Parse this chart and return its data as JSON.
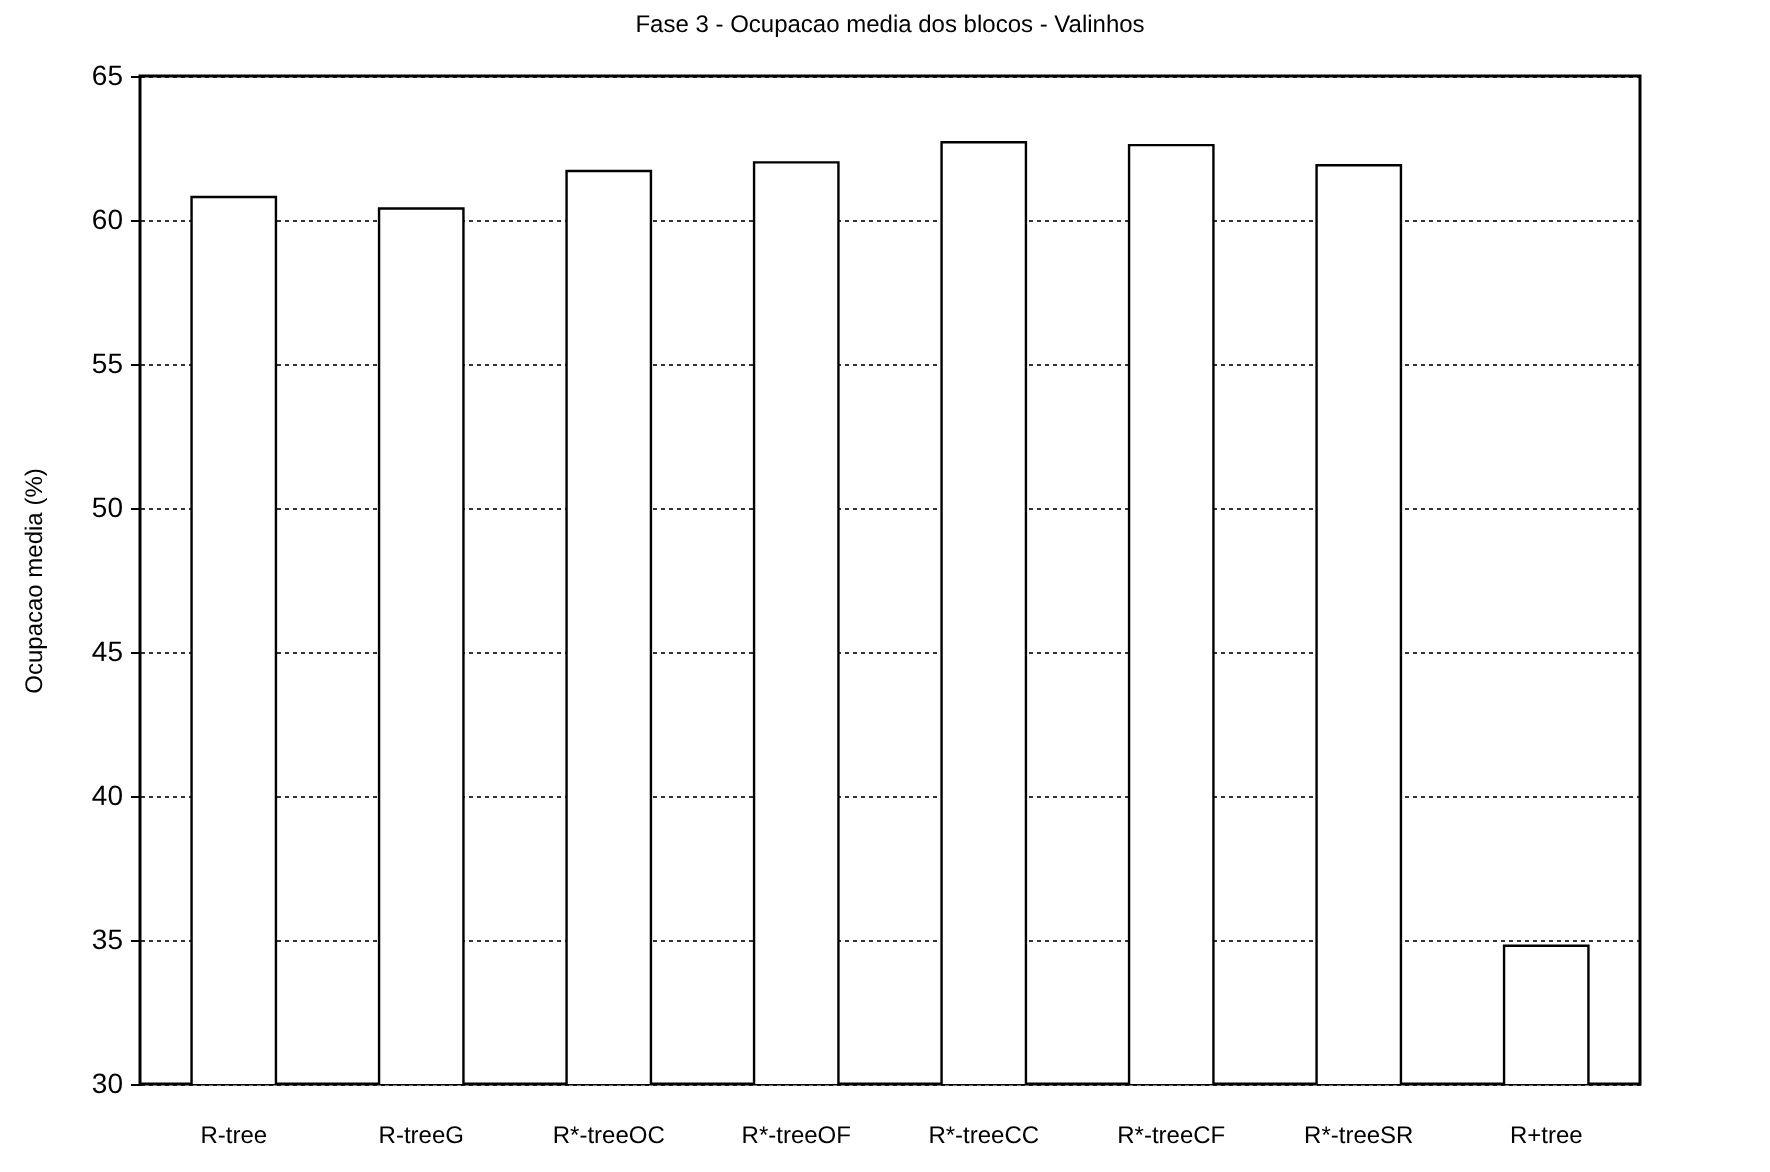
{
  "chart_data": {
    "type": "bar",
    "title": "Fase 3 - Ocupacao media dos blocos - Valinhos",
    "ylabel": "Ocupacao media (%)",
    "categories": [
      "R-tree",
      "R-treeG",
      "R*-treeOC",
      "R*-treeOF",
      "R*-treeCC",
      "R*-treeCF",
      "R*-treeSR",
      "R+tree"
    ],
    "values": [
      60.8,
      60.4,
      61.7,
      62.0,
      62.7,
      62.6,
      61.9,
      34.8
    ],
    "color": "#ffffff",
    "ylim": [
      30,
      65
    ],
    "yticks": [
      30,
      35,
      40,
      45,
      50,
      55,
      60,
      65
    ],
    "grid": "y"
  }
}
